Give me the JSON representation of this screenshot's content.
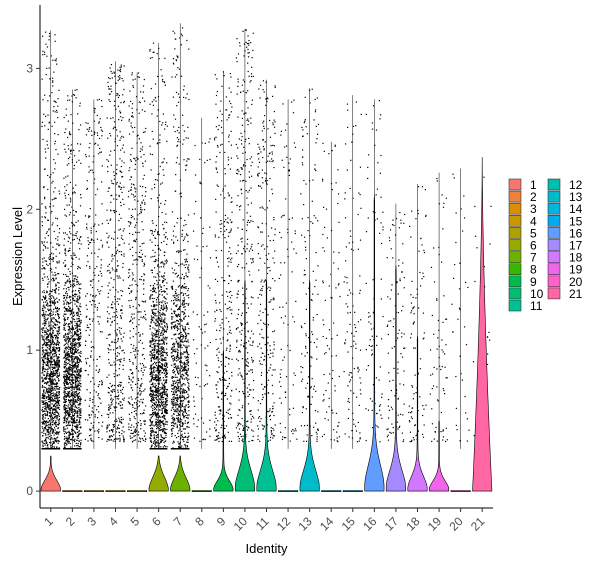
{
  "chart_data": {
    "type": "violin",
    "xlabel": "Identity",
    "ylabel": "Expression Level",
    "ylim": [
      -0.12,
      3.45
    ],
    "y_ticks": [
      0,
      1,
      2,
      3
    ],
    "categories": [
      "1",
      "2",
      "3",
      "4",
      "5",
      "6",
      "7",
      "8",
      "9",
      "10",
      "11",
      "12",
      "13",
      "14",
      "15",
      "16",
      "17",
      "18",
      "19",
      "20",
      "21"
    ],
    "colors": [
      "#F8766D",
      "#EE8042",
      "#DC8E00",
      "#C79800",
      "#AFA100",
      "#93AA00",
      "#6DB100",
      "#36B700",
      "#00BB4E",
      "#00BE74",
      "#00C094",
      "#00BFB0",
      "#00BBC9",
      "#00B5DE",
      "#00ACEE",
      "#619CFF",
      "#A58AFF",
      "#D277FF",
      "#F066EA",
      "#FF61C9",
      "#FF67A4"
    ],
    "violin_peak": [
      0.14,
      0.01,
      0.01,
      0.01,
      0.01,
      0.19,
      0.18,
      0.01,
      0.13,
      0.3,
      0.3,
      0.01,
      0.3,
      0.01,
      0.01,
      0.38,
      0.3,
      0.2,
      0.13,
      0.01,
      2.37
    ],
    "violin_max": [
      0.25,
      0.01,
      0.01,
      0.01,
      0.01,
      0.25,
      0.25,
      0.01,
      1.0,
      1.5,
      1.5,
      0.01,
      1.5,
      0.01,
      0.01,
      2.1,
      1.6,
      1.1,
      0.5,
      0.01,
      2.37
    ],
    "point_max": [
      3.27,
      2.85,
      2.78,
      3.05,
      2.97,
      3.18,
      3.32,
      2.65,
      2.98,
      3.28,
      2.92,
      2.78,
      2.86,
      2.48,
      2.81,
      2.78,
      2.04,
      2.18,
      2.26,
      2.29,
      2.35
    ],
    "point_count": [
      1500,
      1500,
      260,
      480,
      420,
      1300,
      1000,
      80,
      300,
      340,
      270,
      90,
      140,
      85,
      110,
      90,
      110,
      90,
      70,
      35,
      25
    ],
    "legend_columns": [
      [
        "1",
        "2",
        "3",
        "4",
        "5",
        "6",
        "7",
        "8",
        "9",
        "10",
        "11"
      ],
      [
        "12",
        "13",
        "14",
        "15",
        "16",
        "17",
        "18",
        "19",
        "20",
        "21"
      ]
    ]
  }
}
